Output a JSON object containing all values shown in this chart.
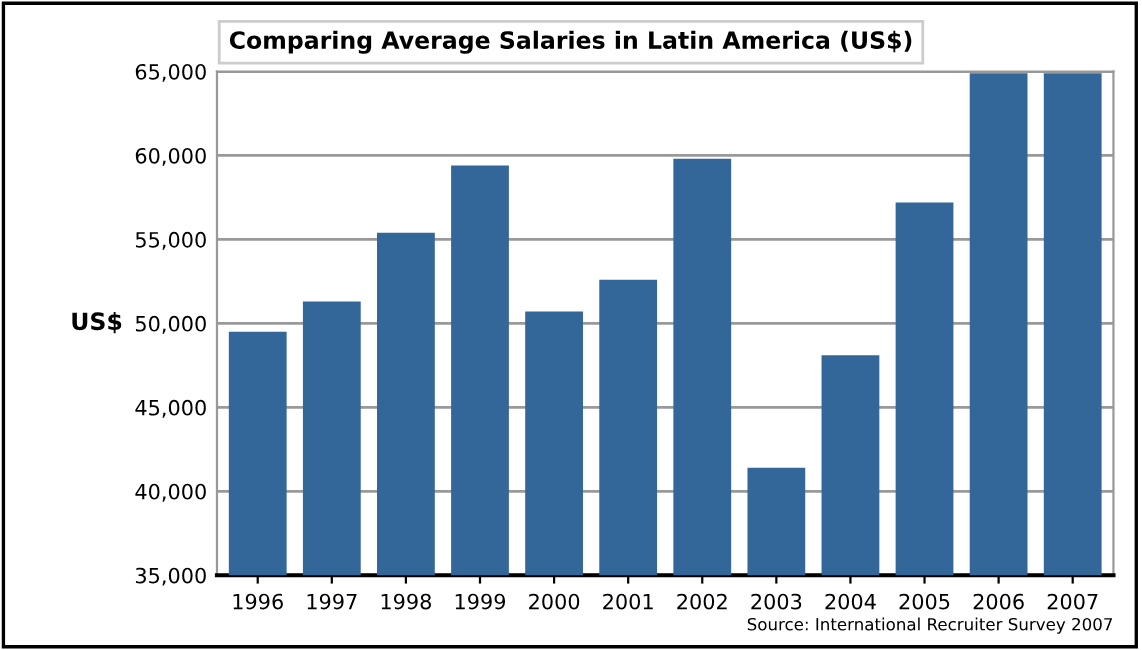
{
  "chart_data": {
    "type": "bar",
    "title": "Comparing Average Salaries in Latin America (US$)",
    "ylabel": "US$",
    "categories": [
      "1996",
      "1997",
      "1998",
      "1999",
      "2000",
      "2001",
      "2002",
      "2003",
      "2004",
      "2005",
      "2006",
      "2007"
    ],
    "values": [
      49500,
      51300,
      55400,
      59400,
      50700,
      52600,
      59800,
      41400,
      48100,
      57200,
      64900,
      64900
    ],
    "color": "#336699",
    "ylim": [
      35000,
      65000
    ],
    "yticks": [
      {
        "value": 35000,
        "label": "35,000"
      },
      {
        "value": 40000,
        "label": "40,000"
      },
      {
        "value": 45000,
        "label": "45,000"
      },
      {
        "value": 50000,
        "label": "50,000"
      },
      {
        "value": 55000,
        "label": "55,000"
      },
      {
        "value": 60000,
        "label": "60,000"
      },
      {
        "value": 65000,
        "label": "65,000"
      }
    ],
    "grid": "y",
    "annotations": [
      "Source: International Recruiter Survey 2007"
    ]
  }
}
